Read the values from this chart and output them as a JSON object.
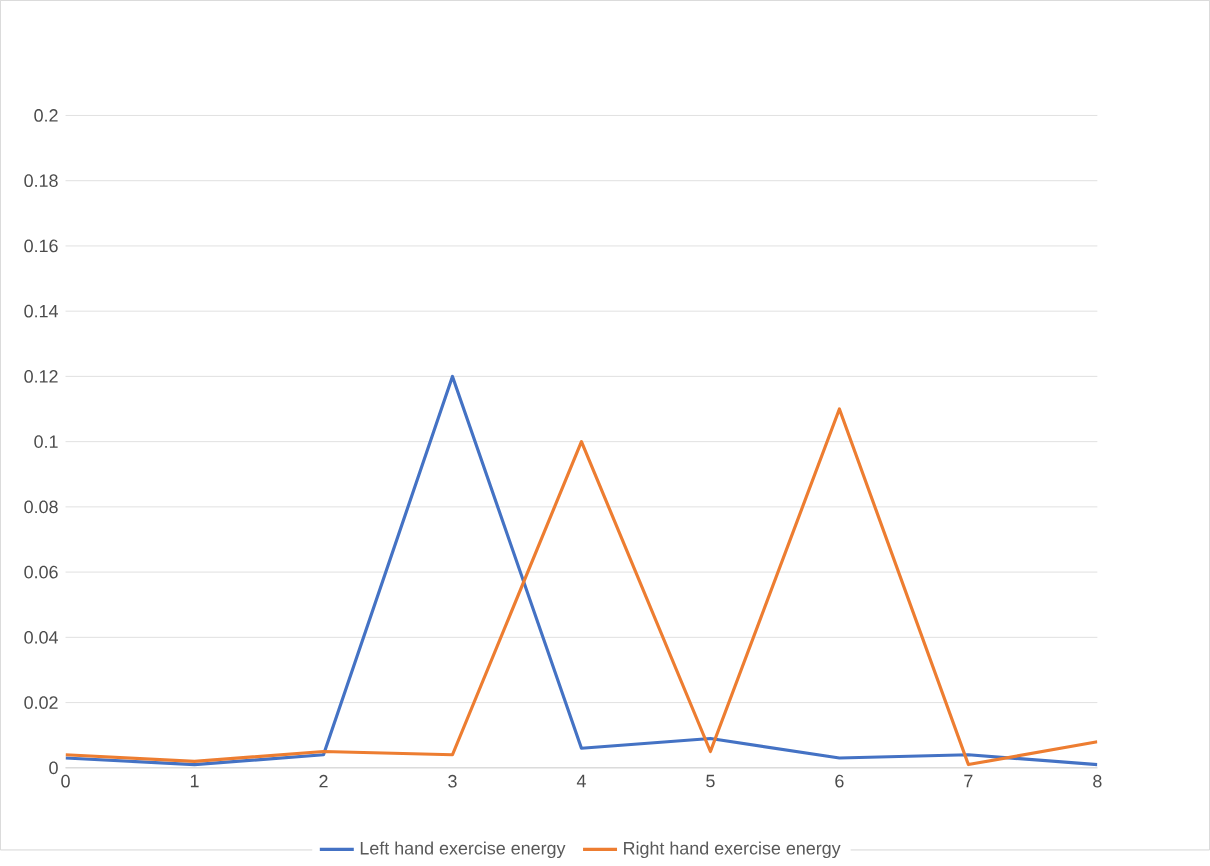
{
  "chart_data": {
    "type": "line",
    "x": [
      0,
      1,
      2,
      3,
      4,
      5,
      6,
      7,
      8
    ],
    "series": [
      {
        "name": "Left hand exercise energy",
        "color": "#4472c4",
        "values": [
          0.003,
          0.001,
          0.004,
          0.12,
          0.006,
          0.009,
          0.003,
          0.004,
          0.001
        ]
      },
      {
        "name": "Right hand exercise energy",
        "color": "#ed7d31",
        "values": [
          0.004,
          0.002,
          0.005,
          0.004,
          0.1,
          0.005,
          0.11,
          0.001,
          0.008
        ]
      }
    ],
    "xlim": [
      0,
      8
    ],
    "xticks": [
      0,
      1,
      2,
      3,
      4,
      5,
      6,
      7,
      8
    ],
    "ylim": [
      0,
      0.2
    ],
    "yticks": [
      0,
      0.02,
      0.04,
      0.06,
      0.08,
      0.1,
      0.12,
      0.14,
      0.16,
      0.18,
      0.2
    ],
    "grid": "y",
    "legend": "bottom",
    "marker": "none",
    "line_style": "solid"
  }
}
